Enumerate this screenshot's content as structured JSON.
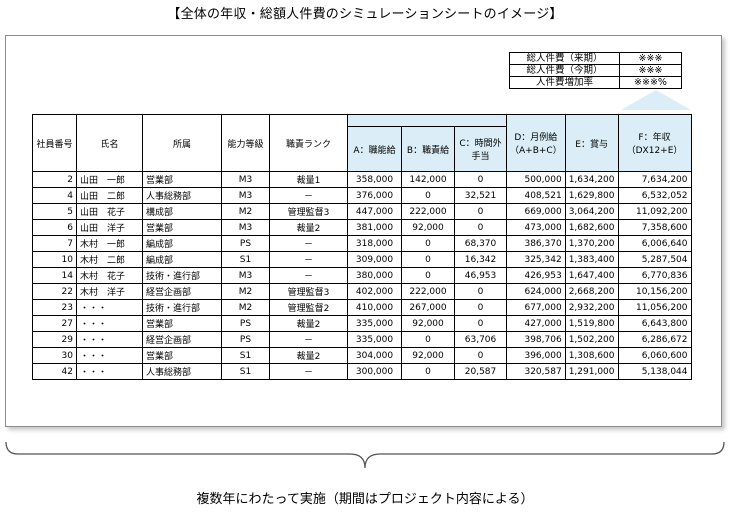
{
  "title": "【全体の年収・総額人件費のシミュレーションシートのイメージ】",
  "summary": [
    {
      "label": "総人件費（来期）",
      "value": "※※※"
    },
    {
      "label": "総人件費（今期）",
      "value": "※※※"
    },
    {
      "label": "人件費増加率",
      "value": "※※※%"
    }
  ],
  "headers": {
    "id": "社員番号",
    "name": "氏名",
    "dept": "所属",
    "grade": "能力等級",
    "rank": "職責ランク",
    "a": "A：職能給",
    "b": "B：職責給",
    "c": "C：時間外手当",
    "d": "D：月例給（A+B+C）",
    "e": "E：賞与",
    "f": "F：年収（DX12+E）"
  },
  "rows": [
    {
      "id": "2",
      "name": "山田　一郎",
      "dept": "営業部",
      "grade": "M3",
      "rank": "裁量1",
      "a": "358,000",
      "b": "142,000",
      "c": "0",
      "d": "500,000",
      "e": "1,634,200",
      "f": "7,634,200"
    },
    {
      "id": "4",
      "name": "山田　二郎",
      "dept": "人事総務部",
      "grade": "M3",
      "rank": "－",
      "a": "376,000",
      "b": "0",
      "c": "32,521",
      "d": "408,521",
      "e": "1,629,800",
      "f": "6,532,052"
    },
    {
      "id": "5",
      "name": "山田　花子",
      "dept": "構成部",
      "grade": "M2",
      "rank": "管理監督3",
      "a": "447,000",
      "b": "222,000",
      "c": "0",
      "d": "669,000",
      "e": "3,064,200",
      "f": "11,092,200"
    },
    {
      "id": "6",
      "name": "山田　洋子",
      "dept": "営業部",
      "grade": "M3",
      "rank": "裁量2",
      "a": "381,000",
      "b": "92,000",
      "c": "0",
      "d": "473,000",
      "e": "1,682,600",
      "f": "7,358,600"
    },
    {
      "id": "7",
      "name": "木村　一郎",
      "dept": "編成部",
      "grade": "PS",
      "rank": "－",
      "a": "318,000",
      "b": "0",
      "c": "68,370",
      "d": "386,370",
      "e": "1,370,200",
      "f": "6,006,640"
    },
    {
      "id": "10",
      "name": "木村　二郎",
      "dept": "編成部",
      "grade": "S1",
      "rank": "－",
      "a": "309,000",
      "b": "0",
      "c": "16,342",
      "d": "325,342",
      "e": "1,383,400",
      "f": "5,287,504"
    },
    {
      "id": "14",
      "name": "木村　花子",
      "dept": "技術・進行部",
      "grade": "M3",
      "rank": "－",
      "a": "380,000",
      "b": "0",
      "c": "46,953",
      "d": "426,953",
      "e": "1,647,400",
      "f": "6,770,836"
    },
    {
      "id": "22",
      "name": "木村　洋子",
      "dept": "経営企画部",
      "grade": "M2",
      "rank": "管理監督3",
      "a": "402,000",
      "b": "222,000",
      "c": "0",
      "d": "624,000",
      "e": "2,668,200",
      "f": "10,156,200"
    },
    {
      "id": "23",
      "name": "・・・",
      "dept": "技術・進行部",
      "grade": "M2",
      "rank": "管理監督2",
      "a": "410,000",
      "b": "267,000",
      "c": "0",
      "d": "677,000",
      "e": "2,932,200",
      "f": "11,056,200"
    },
    {
      "id": "27",
      "name": "・・・",
      "dept": "営業部",
      "grade": "PS",
      "rank": "裁量2",
      "a": "335,000",
      "b": "92,000",
      "c": "0",
      "d": "427,000",
      "e": "1,519,800",
      "f": "6,643,800"
    },
    {
      "id": "29",
      "name": "・・・",
      "dept": "経営企画部",
      "grade": "PS",
      "rank": "－",
      "a": "335,000",
      "b": "0",
      "c": "63,706",
      "d": "398,706",
      "e": "1,502,200",
      "f": "6,286,672"
    },
    {
      "id": "30",
      "name": "・・・",
      "dept": "営業部",
      "grade": "S1",
      "rank": "裁量2",
      "a": "304,000",
      "b": "92,000",
      "c": "0",
      "d": "396,000",
      "e": "1,308,600",
      "f": "6,060,600"
    },
    {
      "id": "42",
      "name": "・・・",
      "dept": "人事総務部",
      "grade": "S1",
      "rank": "－",
      "a": "300,000",
      "b": "0",
      "c": "20,587",
      "d": "320,587",
      "e": "1,291,000",
      "f": "5,138,044"
    }
  ],
  "footer": "複数年にわたって実施（期間はプロジェクト内容による）"
}
